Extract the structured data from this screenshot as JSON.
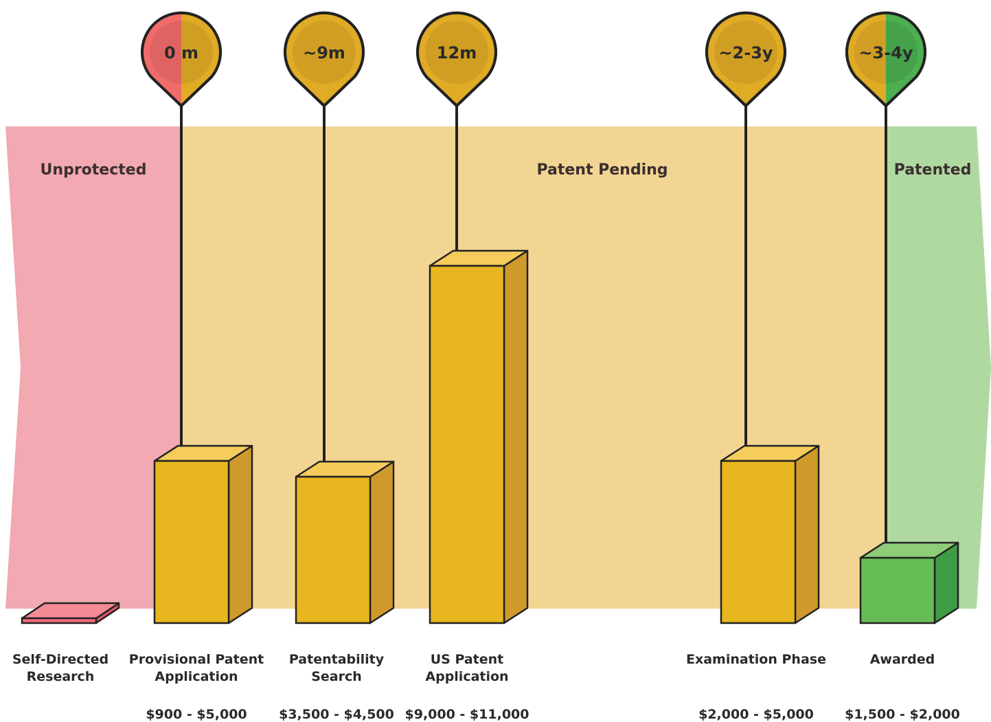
{
  "chart_data": {
    "type": "bar",
    "title": "",
    "xlabel": "",
    "ylabel": "",
    "zones": [
      {
        "label": "Unprotected",
        "color": "#f2a9b1"
      },
      {
        "label": "Patent Pending",
        "color": "#f2d592"
      },
      {
        "label": "Patented",
        "color": "#b0d9a1"
      }
    ],
    "stages": [
      {
        "name": "Self-Directed Research",
        "lines": [
          "Self-Directed",
          "Research"
        ],
        "cost": "",
        "min": 0,
        "max": 0,
        "time": "",
        "phase": "unprotected"
      },
      {
        "name": "Provisional Patent Application",
        "lines": [
          "Provisional Patent",
          "Application"
        ],
        "cost": "$900 - $5,000",
        "min": 900,
        "max": 5000,
        "time": "0 m",
        "phase": "pending",
        "pin_split": "#f26b6b"
      },
      {
        "name": "Patentability Search",
        "lines": [
          "Patentability",
          "Search"
        ],
        "cost": "$3,500 - $4,500",
        "min": 3500,
        "max": 4500,
        "time": "~9m",
        "phase": "pending"
      },
      {
        "name": "US Patent Application",
        "lines": [
          "US Patent",
          "Application"
        ],
        "cost": "$9,000 - $11,000",
        "min": 9000,
        "max": 11000,
        "time": "12m",
        "phase": "pending"
      },
      {
        "name": "Examination Phase",
        "lines": [
          "Examination Phase"
        ],
        "cost": "$2,000 - $5,000",
        "min": 2000,
        "max": 5000,
        "time": "~2-3y",
        "phase": "pending"
      },
      {
        "name": "Awarded",
        "lines": [
          "Awarded"
        ],
        "cost": "$1,500 - $2,000",
        "min": 1500,
        "max": 2000,
        "time": "~3-4y",
        "phase": "patented",
        "pin_split": "#4caf50"
      }
    ],
    "colors": {
      "bar_front": "#e8b61e",
      "bar_side": "#cf9a2b",
      "bar_top": "#f5cc5c",
      "research_front": "#f26b7a",
      "research_top": "#f58a94",
      "awarded_front": "#66bd55",
      "awarded_side": "#3e9c45",
      "awarded_top": "#8fcc78",
      "pin": "#e0ab25",
      "pin_inner": "#d8a323"
    }
  }
}
